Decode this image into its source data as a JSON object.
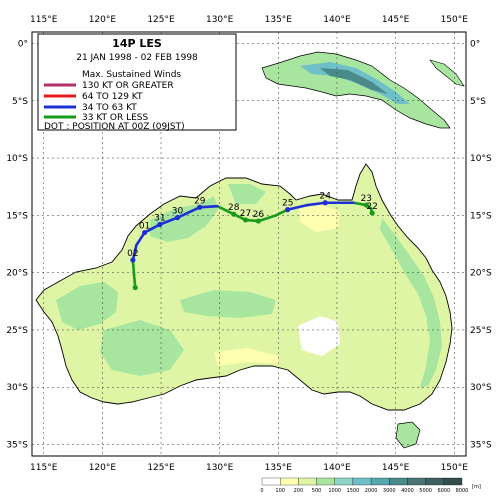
{
  "storm": {
    "name": "14P  LES",
    "period": "21 JAN 1998 - 02 FEB 1998"
  },
  "legend": {
    "heading": "Max. Sustained Winds",
    "items": [
      {
        "label": "130 KT OR GREATER",
        "color": "#b0306a"
      },
      {
        "label": "64 TO 129 KT",
        "color": "#e8191e"
      },
      {
        "label": "34 TO 63 KT",
        "color": "#1f2fd6"
      },
      {
        "label": "33 KT OR LESS",
        "color": "#1a9a1a"
      }
    ],
    "dot_note": "DOT : POSITION AT 00Z (09JST)"
  },
  "axes": {
    "lon_labels": [
      "115°E",
      "120°E",
      "125°E",
      "130°E",
      "135°E",
      "140°E",
      "145°E",
      "150°E"
    ],
    "lat_labels": [
      "0°",
      "5°S",
      "10°S",
      "15°S",
      "20°S",
      "25°S",
      "30°S",
      "35°S"
    ]
  },
  "track": {
    "points": [
      {
        "lon": 143.0,
        "lat": -14.8,
        "cat": "td"
      },
      {
        "lon": 142.9,
        "lat": -14.4,
        "cat": "td"
      },
      {
        "lon": 142.5,
        "lat": -14.1,
        "cat": "td"
      },
      {
        "lon": 141.4,
        "lat": -13.9,
        "cat": "td"
      },
      {
        "lon": 139.0,
        "lat": -13.9,
        "cat": "ts"
      },
      {
        "lon": 137.5,
        "lat": -14.1,
        "cat": "ts"
      },
      {
        "lon": 135.8,
        "lat": -14.5,
        "cat": "ts"
      },
      {
        "lon": 134.8,
        "lat": -15.0,
        "cat": "td"
      },
      {
        "lon": 133.3,
        "lat": -15.5,
        "cat": "td"
      },
      {
        "lon": 132.2,
        "lat": -15.4,
        "cat": "td"
      },
      {
        "lon": 131.2,
        "lat": -14.9,
        "cat": "td"
      },
      {
        "lon": 129.8,
        "lat": -14.2,
        "cat": "td"
      },
      {
        "lon": 128.3,
        "lat": -14.3,
        "cat": "ts"
      },
      {
        "lon": 126.4,
        "lat": -15.2,
        "cat": "ts"
      },
      {
        "lon": 124.9,
        "lat": -15.8,
        "cat": "ts"
      },
      {
        "lon": 123.6,
        "lat": -16.5,
        "cat": "ts"
      },
      {
        "lon": 122.9,
        "lat": -17.6,
        "cat": "ts"
      },
      {
        "lon": 122.6,
        "lat": -18.9,
        "cat": "ts"
      },
      {
        "lon": 122.7,
        "lat": -20.2,
        "cat": "td"
      },
      {
        "lon": 122.8,
        "lat": -21.3,
        "cat": "td"
      }
    ],
    "daily": [
      {
        "lon": 143.0,
        "lat": -14.8,
        "label": "22"
      },
      {
        "lon": 142.5,
        "lat": -14.1,
        "label": "23"
      },
      {
        "lon": 139.0,
        "lat": -13.9,
        "label": "24"
      },
      {
        "lon": 135.8,
        "lat": -14.5,
        "label": "25"
      },
      {
        "lon": 133.3,
        "lat": -15.5,
        "label": "26"
      },
      {
        "lon": 132.2,
        "lat": -15.4,
        "label": "27"
      },
      {
        "lon": 131.2,
        "lat": -14.9,
        "label": "28"
      },
      {
        "lon": 128.3,
        "lat": -14.3,
        "label": "29"
      },
      {
        "lon": 126.4,
        "lat": -15.2,
        "label": "30"
      },
      {
        "lon": 124.9,
        "lat": -15.8,
        "label": "31"
      },
      {
        "lon": 123.6,
        "lat": -16.5,
        "label": "01"
      },
      {
        "lon": 122.6,
        "lat": -18.9,
        "label": "02"
      },
      {
        "lon": 122.8,
        "lat": -21.3,
        "label": ""
      }
    ]
  },
  "colorbar": {
    "unit": "[m]",
    "ticks": [
      "0",
      "100",
      "200",
      "500",
      "1000",
      "1500",
      "2000",
      "3000",
      "4000",
      "5000",
      "6000",
      "8000"
    ],
    "colors": [
      "#ffffff",
      "#ffffb0",
      "#dff5a6",
      "#a8e6a0",
      "#8fd6c8",
      "#6fbfc8",
      "#55a8b0",
      "#4a8a8a",
      "#4a7575",
      "#3f6060",
      "#334d4d"
    ]
  }
}
